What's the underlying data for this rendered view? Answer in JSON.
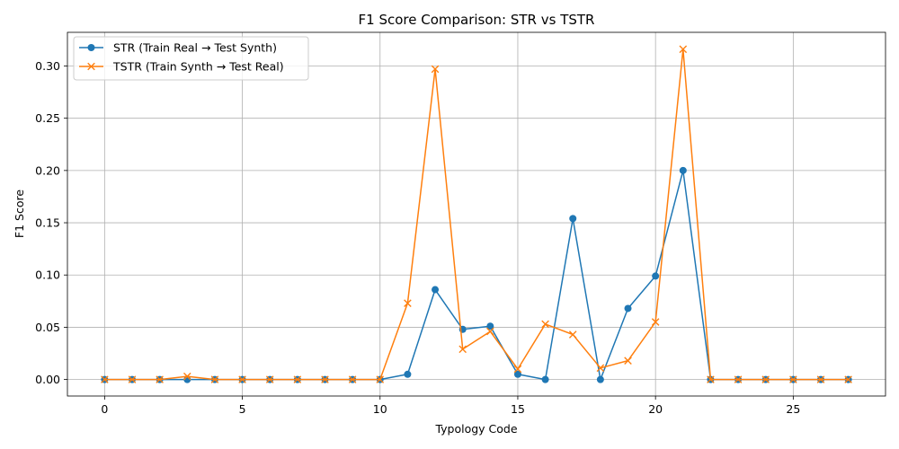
{
  "chart_data": {
    "type": "line",
    "title": "F1 Score Comparison: STR vs TSTR",
    "xlabel": "Typology Code",
    "ylabel": "F1 Score",
    "xlim": [
      -1.35,
      28.35
    ],
    "ylim": [
      -0.0158,
      0.3322
    ],
    "xticks": [
      0,
      5,
      10,
      15,
      20,
      25
    ],
    "yticks": [
      0.0,
      0.05,
      0.1,
      0.15,
      0.2,
      0.25,
      0.3
    ],
    "grid": true,
    "legend_position": "upper-left",
    "x": [
      0,
      1,
      2,
      3,
      4,
      5,
      6,
      7,
      8,
      9,
      10,
      11,
      12,
      13,
      14,
      15,
      16,
      17,
      18,
      19,
      20,
      21,
      22,
      23,
      24,
      25,
      26,
      27
    ],
    "series": [
      {
        "name": "STR (Train Real → Test Synth)",
        "color": "#1f77b4",
        "marker": "circle",
        "values": [
          0,
          0,
          0,
          0,
          0,
          0,
          0,
          0,
          0,
          0,
          0,
          0.005,
          0.086,
          0.048,
          0.051,
          0.005,
          0,
          0.154,
          0,
          0.068,
          0.099,
          0.2,
          0,
          0,
          0,
          0,
          0,
          0
        ]
      },
      {
        "name": "TSTR (Train Synth → Test Real)",
        "color": "#ff7f0e",
        "marker": "x",
        "values": [
          0,
          0,
          0,
          0.003,
          0,
          0,
          0,
          0,
          0,
          0,
          0,
          0.073,
          0.297,
          0.029,
          0.046,
          0.01,
          0.053,
          0.043,
          0.011,
          0.018,
          0.055,
          0.316,
          0,
          0,
          0,
          0,
          0,
          0
        ]
      }
    ]
  }
}
